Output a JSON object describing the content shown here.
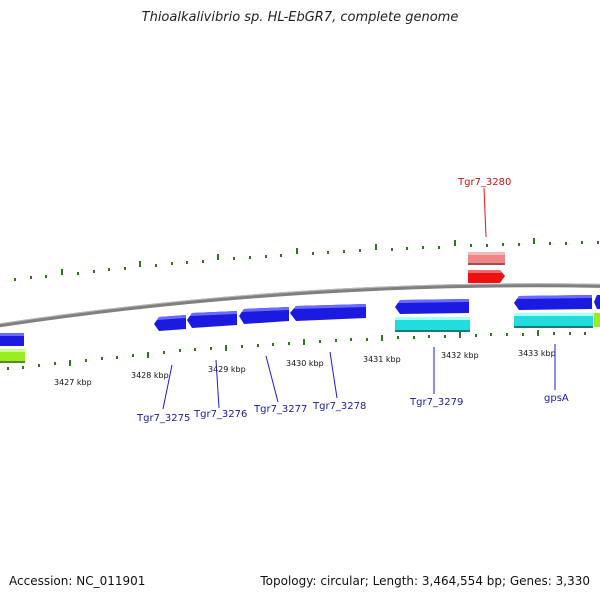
{
  "title": "Thioalkalivibrio sp. HL-EbGR7, complete genome",
  "footer": {
    "accession": "Accession: NC_011901",
    "summary": "Topology: circular; Length: 3,464,554 bp; Genes: 3,330"
  },
  "scale_labels": [
    "3427 kbp",
    "3428 kbp",
    "3429 kbp",
    "3430 kbp",
    "3431 kbp",
    "3432 kbp",
    "3433 kbp"
  ],
  "gene_labels": [
    {
      "text": "Tgr7_3275",
      "color": "#1a1aa6"
    },
    {
      "text": "Tgr7_3276",
      "color": "#1a1aa6"
    },
    {
      "text": "Tgr7_3277",
      "color": "#1a1aa6"
    },
    {
      "text": "Tgr7_3278",
      "color": "#1a1aa6"
    },
    {
      "text": "Tgr7_3279",
      "color": "#1a1aa6"
    },
    {
      "text": "gpsA",
      "color": "#1a1aa6"
    },
    {
      "text": "Tgr7_3280",
      "color": "#cc1111"
    }
  ],
  "colors": {
    "gene_blue": "#1a1ae0",
    "cds_cyan": "#22dddd",
    "misc_green": "#99ee22",
    "rna_red": "#ee1111",
    "rna_pink": "#ee8888",
    "tick_green": "#2a7a1a",
    "backbone": "#888888"
  }
}
